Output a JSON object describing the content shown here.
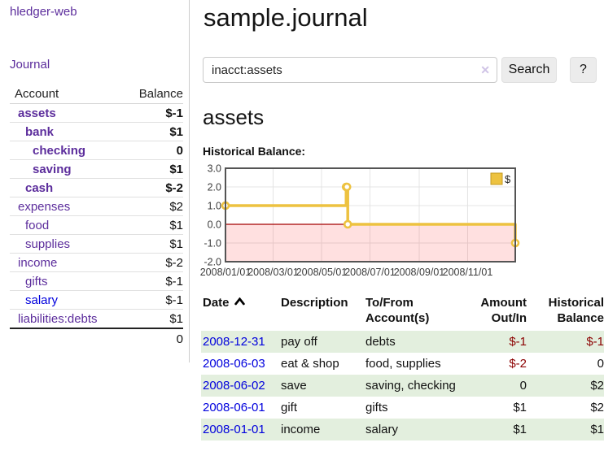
{
  "app": {
    "title": "hledger-web",
    "nav_journal": "Journal"
  },
  "sidebar": {
    "accounts_header": {
      "account": "Account",
      "balance": "Balance"
    },
    "accounts": [
      {
        "name": "assets",
        "depth": 1,
        "balance": "$-1",
        "bold": true,
        "color": "red"
      },
      {
        "name": "bank",
        "depth": 2,
        "balance": "$1",
        "bold": true,
        "color": "black"
      },
      {
        "name": "checking",
        "depth": 3,
        "balance": "0",
        "bold": true,
        "color": "black"
      },
      {
        "name": "saving",
        "depth": 3,
        "balance": "$1",
        "bold": true,
        "color": "black"
      },
      {
        "name": "cash",
        "depth": 2,
        "balance": "$-2",
        "bold": true,
        "color": "red"
      },
      {
        "name": "expenses",
        "depth": 1,
        "balance": "$2",
        "bold": false,
        "color": "black"
      },
      {
        "name": "food",
        "depth": 2,
        "balance": "$1",
        "bold": false,
        "color": "black"
      },
      {
        "name": "supplies",
        "depth": 2,
        "balance": "$1",
        "bold": false,
        "color": "black"
      },
      {
        "name": "income",
        "depth": 1,
        "balance": "$-2",
        "bold": false,
        "color": "dim"
      },
      {
        "name": "gifts",
        "depth": 2,
        "balance": "$-1",
        "bold": false,
        "color": "dim"
      },
      {
        "name": "salary",
        "depth": 2,
        "balance": "$-1",
        "bold": false,
        "color": "dim",
        "unvisited": true
      },
      {
        "name": "liabilities:debts",
        "depth": 1,
        "balance": "$1",
        "bold": false,
        "color": "black"
      }
    ],
    "total": "0"
  },
  "header": {
    "title": "sample.journal"
  },
  "search": {
    "value": "inacct:assets",
    "clear_icon": "✕",
    "button": "Search",
    "help_button": "?"
  },
  "account_page": {
    "title": "assets",
    "chart_label": "Historical Balance:"
  },
  "chart_data": {
    "type": "line",
    "step": true,
    "title": "Historical Balance:",
    "legend": [
      {
        "label": "$",
        "color": "#edc240"
      }
    ],
    "legend_position": "top-right",
    "x": [
      "2008-01-01",
      "2008-06-01",
      "2008-06-02",
      "2008-06-03",
      "2008-12-31"
    ],
    "y": [
      1,
      2,
      2,
      0,
      -1
    ],
    "xlim": [
      "2008-01-01",
      "2008-12-31"
    ],
    "ylim": [
      -2,
      3
    ],
    "yticks": [
      3,
      2,
      1,
      0,
      -1,
      -2
    ],
    "ytick_labels": [
      "3.0",
      "2.0",
      "1.0",
      "0.0",
      "-1.0",
      "-2.0"
    ],
    "xtick_dates": [
      "2008-01-01",
      "2008-03-01",
      "2008-05-01",
      "2008-07-01",
      "2008-09-01",
      "2008-11-01"
    ],
    "xtick_labels": [
      "2008/01/01",
      "2008/03/01",
      "2008/05/01",
      "2008/07/01",
      "2008/09/01",
      "2008/11/01"
    ],
    "grid": true,
    "colors": {
      "line": "#edc240",
      "point_fill": "#ffffff",
      "negative_region": "rgba(255,0,0,0.12)",
      "zero_line": "#a40000",
      "border": "#545454",
      "grid": "#e4e4e4",
      "tick_text": "#3c3c3c"
    }
  },
  "register": {
    "headers": [
      {
        "l1": "Date",
        "sort": true,
        "align": "left"
      },
      {
        "l1": "Description",
        "align": "left"
      },
      {
        "l1": "To/From",
        "l2": "Account(s)",
        "align": "left"
      },
      {
        "l1": "Amount",
        "l2": "Out/In",
        "align": "right"
      },
      {
        "l1": "Historical",
        "l2": "Balance",
        "align": "right"
      }
    ],
    "rows": [
      {
        "date": "2008-12-31",
        "description": "pay off",
        "accounts": "debts",
        "amount": "$-1",
        "amount_neg": true,
        "balance": "$-1",
        "balance_neg": true,
        "striped": true
      },
      {
        "date": "2008-06-03",
        "description": "eat & shop",
        "accounts": "food, supplies",
        "amount": "$-2",
        "amount_neg": true,
        "balance": "0",
        "balance_neg": false,
        "striped": false
      },
      {
        "date": "2008-06-02",
        "description": "save",
        "accounts": "saving, checking",
        "amount": "0",
        "amount_neg": false,
        "balance": "$2",
        "balance_neg": false,
        "striped": true
      },
      {
        "date": "2008-06-01",
        "description": "gift",
        "accounts": "gifts",
        "amount": "$1",
        "amount_neg": false,
        "balance": "$2",
        "balance_neg": false,
        "striped": false
      },
      {
        "date": "2008-01-01",
        "description": "income",
        "accounts": "salary",
        "amount": "$1",
        "amount_neg": false,
        "balance": "$1",
        "balance_neg": false,
        "striped": true
      }
    ]
  }
}
